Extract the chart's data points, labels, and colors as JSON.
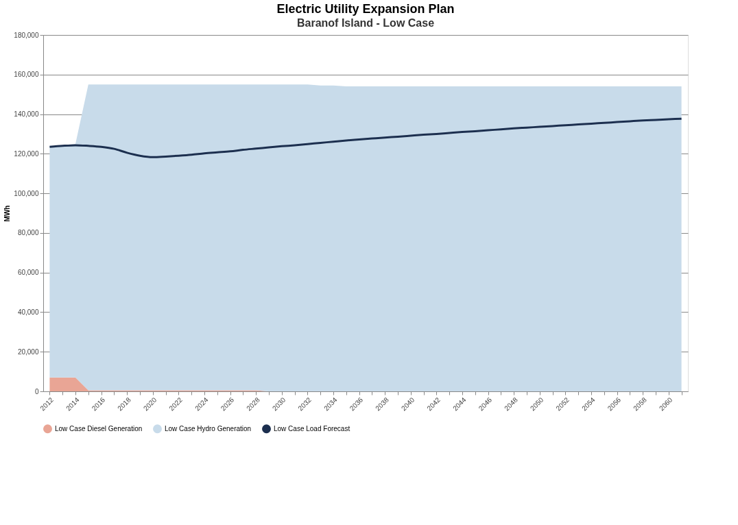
{
  "chart_data": {
    "type": "area",
    "title": "Electric Utility Expansion Plan",
    "subtitle": "Baranof Island - Low Case",
    "ylabel": "MWh",
    "categories": [
      "2012",
      null,
      "2014",
      null,
      "2016",
      null,
      "2018",
      null,
      "2020",
      null,
      "2022",
      null,
      "2024",
      null,
      "2026",
      null,
      "2028",
      null,
      "2030",
      null,
      "2032",
      null,
      "2034",
      null,
      "2036",
      null,
      "2038",
      null,
      "2040",
      null,
      "2042",
      null,
      "2044",
      null,
      "2046",
      null,
      "2048",
      null,
      "2050",
      null,
      "2052",
      null,
      "2054",
      null,
      "2056",
      null,
      "2058",
      null,
      "2060",
      null
    ],
    "stacked": true,
    "series": [
      {
        "name": "Low Case Diesel Generation",
        "color": "#e9a595",
        "values": [
          7000,
          7000,
          7000,
          500,
          500,
          500,
          500,
          500,
          500,
          500,
          500,
          500,
          500,
          500,
          500,
          500,
          500,
          0,
          0,
          0,
          0,
          0,
          0,
          0,
          0,
          0,
          0,
          0,
          0,
          0,
          0,
          0,
          0,
          0,
          0,
          0,
          0,
          0,
          0,
          0,
          0,
          0,
          0,
          0,
          0,
          0,
          0,
          0,
          0,
          0
        ]
      },
      {
        "name": "Low Case Hydro Generation",
        "color": "#c8dbea",
        "values": [
          117000,
          117000,
          118000,
          154500,
          154500,
          154500,
          154500,
          154500,
          154500,
          154500,
          154500,
          154500,
          154500,
          154500,
          154500,
          154500,
          154500,
          155000,
          155000,
          155000,
          155000,
          154500,
          154500,
          154000,
          154000,
          154000,
          154000,
          154000,
          154000,
          154000,
          154000,
          154000,
          154000,
          154000,
          154000,
          154000,
          154000,
          154000,
          154000,
          154000,
          154000,
          154000,
          154000,
          154000,
          154000,
          154000,
          154000,
          154000,
          154000,
          154000
        ]
      },
      {
        "name": "Low Case Load Forecast",
        "color": "#1c2f4f",
        "type": "line",
        "values": [
          123500,
          124000,
          124300,
          124000,
          123500,
          122500,
          120500,
          119000,
          118300,
          118600,
          119000,
          119500,
          120200,
          120700,
          121200,
          122000,
          122600,
          123200,
          123800,
          124300,
          124900,
          125500,
          126100,
          126700,
          127200,
          127700,
          128200,
          128600,
          129100,
          129600,
          130000,
          130500,
          131000,
          131400,
          131900,
          132300,
          132800,
          133200,
          133600,
          134000,
          134400,
          134800,
          135200,
          135600,
          136000,
          136400,
          136800,
          137100,
          137400,
          137700
        ]
      }
    ],
    "ylim": [
      0,
      180000
    ],
    "yticks": [
      {
        "value": 0,
        "label": "0"
      },
      {
        "value": 20000,
        "label": "20,000"
      },
      {
        "value": 40000,
        "label": "40,000"
      },
      {
        "value": 60000,
        "label": "60,000"
      },
      {
        "value": 80000,
        "label": "80,000"
      },
      {
        "value": 100000,
        "label": "100,000"
      },
      {
        "value": 120000,
        "label": "120,000"
      },
      {
        "value": 140000,
        "label": "140,000"
      },
      {
        "value": 160000,
        "label": "160,000"
      },
      {
        "value": 180000,
        "label": "180,000"
      }
    ],
    "grid": "y",
    "legend": "bottom"
  }
}
